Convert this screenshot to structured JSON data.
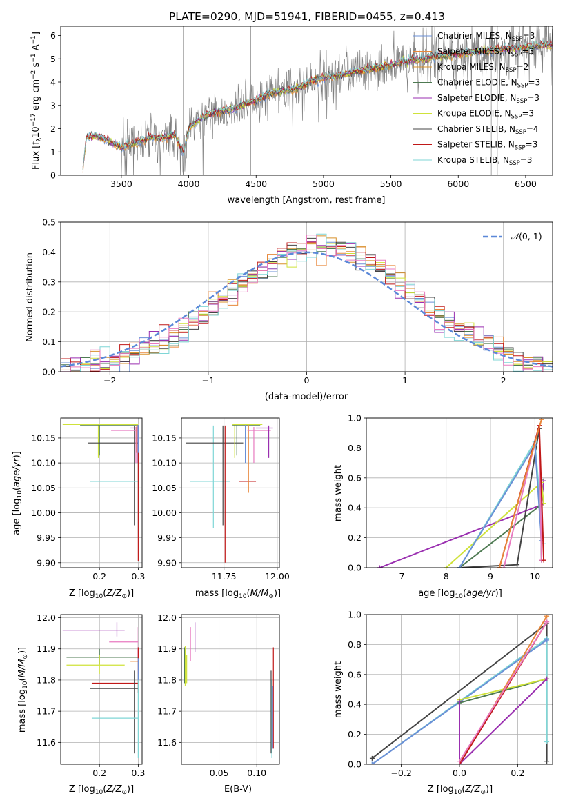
{
  "figure": {
    "title": "PLATE=0290, MJD=51941, FIBERID=0455, z=0.413"
  },
  "colors": {
    "chabrier_miles": "#6a8fd6",
    "salpeter_miles": "#e8873a",
    "kroupa_miles": "#d8902a",
    "chabrier_elodie": "#4e7a52",
    "salpeter_elodie": "#9a2fb0",
    "kroupa_elodie": "#cfe23a",
    "chabrier_stelib": "#444444",
    "salpeter_stelib": "#c01818",
    "kroupa_stelib": "#7fd6d6",
    "normal_curve": "#5b88d8",
    "pink": "#e87ac0",
    "data_gray": "#808080"
  },
  "chart_data": [
    {
      "id": "spectrum",
      "type": "line",
      "title": "",
      "xlabel": "wavelength [Angstrom, rest frame]",
      "ylabel": "Flux [f_λ10^-17 erg cm^-2 s^-1 A^-1]",
      "xlim": [
        3050,
        6700
      ],
      "ylim": [
        0,
        6.4
      ],
      "xticks": [
        3500,
        4000,
        4500,
        5000,
        5500,
        6000,
        6500
      ],
      "yticks": [
        0,
        1,
        2,
        3,
        4,
        5,
        6
      ],
      "grid": false,
      "legend_position": "top-right",
      "legend": [
        "Chabrier MILES, N_SSP=3",
        "Salpeter MILES, N_SSP=3",
        "Kroupa MILES, N_SSP=2",
        "Chabrier ELODIE, N_SSP=3",
        "Salpeter ELODIE, N_SSP=3",
        "Kroupa ELODIE, N_SSP=3",
        "Chabrier STELIB, N_SSP=4",
        "Salpeter STELIB, N_SSP=3",
        "Kroupa STELIB, N_SSP=3"
      ],
      "continuum": {
        "wavelength": [
          3215,
          3240,
          3300,
          3400,
          3500,
          3600,
          3700,
          3800,
          3900,
          3960,
          4000,
          4100,
          4200,
          4300,
          4400,
          4500,
          4600,
          4700,
          4800,
          4900,
          5000,
          5100,
          5200,
          5300,
          5400,
          5500,
          5600,
          5700,
          5800,
          5900,
          6000,
          6100,
          6200,
          6300,
          6400,
          6500,
          6600,
          6700
        ],
        "flux": [
          0.3,
          1.6,
          1.7,
          1.5,
          1.2,
          1.35,
          1.6,
          1.6,
          1.75,
          0.9,
          2.0,
          2.5,
          2.7,
          2.8,
          3.0,
          3.2,
          3.5,
          3.6,
          3.7,
          4.0,
          4.2,
          4.25,
          4.4,
          4.5,
          4.6,
          4.7,
          4.9,
          4.95,
          5.05,
          5.15,
          5.2,
          5.3,
          5.35,
          5.4,
          5.45,
          5.5,
          5.55,
          5.6
        ]
      }
    },
    {
      "id": "residuals",
      "type": "histogram",
      "title": "",
      "xlabel": "(data-model)/error",
      "ylabel": "Normed distribution",
      "xlim": [
        -2.5,
        2.5
      ],
      "ylim": [
        0,
        0.5
      ],
      "xticks": [
        -2,
        -1,
        0,
        1,
        2
      ],
      "yticks": [
        0.0,
        0.1,
        0.2,
        0.3,
        0.4,
        0.5
      ],
      "grid": true,
      "legend_position": "top-right",
      "legend": [
        "N(0,1)"
      ],
      "bin_width": 0.1,
      "base_distribution": "normal(0.1, 0.95)"
    },
    {
      "id": "age_vs_Z",
      "type": "errorbar",
      "title": "",
      "xlabel": "Z [log10(Z/Z⊙)]",
      "ylabel": "age  [log10(age/yr)]",
      "xlim": [
        0.1,
        0.31
      ],
      "ylim": [
        9.89,
        10.19
      ],
      "xticks": [
        0.2,
        0.3
      ],
      "yticks": [
        9.9,
        9.95,
        10.0,
        10.05,
        10.1,
        10.15
      ],
      "grid": true
    },
    {
      "id": "age_vs_mass",
      "type": "errorbar",
      "title": "",
      "xlabel": "mass [log10(M/M⊙)]",
      "ylabel": "",
      "xlim": [
        11.55,
        12.01
      ],
      "ylim": [
        9.89,
        10.19
      ],
      "xticks": [
        11.75,
        12.0
      ],
      "yticks": [
        9.9,
        9.95,
        10.0,
        10.05,
        10.1,
        10.15
      ],
      "grid": true
    },
    {
      "id": "mass_weight_vs_age",
      "type": "line",
      "title": "",
      "xlabel": "age  [log10(age/yr)]",
      "ylabel": "mass weight",
      "xlim": [
        6.2,
        10.4
      ],
      "ylim": [
        0,
        1.0
      ],
      "xticks": [
        7,
        8,
        9,
        10
      ],
      "yticks": [
        0.0,
        0.2,
        0.4,
        0.6,
        0.8,
        1.0
      ],
      "grid": true,
      "series": [
        {
          "color": "salpeter_elodie",
          "x": [
            6.5,
            10.15,
            10.2
          ],
          "y": [
            0.0,
            0.42,
            0.58
          ]
        },
        {
          "color": "kroupa_elodie",
          "x": [
            8.0,
            10.15,
            10.2
          ],
          "y": [
            0.0,
            0.57,
            0.43
          ]
        },
        {
          "color": "chabrier_elodie",
          "x": [
            8.3,
            10.1,
            10.15
          ],
          "y": [
            0.0,
            0.41,
            0.59
          ]
        },
        {
          "color": "chabrier_stelib",
          "x": [
            8.3,
            9.6,
            10.1,
            10.15
          ],
          "y": [
            0.0,
            0.02,
            0.93,
            0.05
          ]
        },
        {
          "color": "kroupa_stelib",
          "x": [
            8.3,
            10.0,
            10.2
          ],
          "y": [
            0.0,
            0.84,
            0.16
          ]
        },
        {
          "color": "chabrier_miles",
          "x": [
            8.3,
            10.0,
            10.15
          ],
          "y": [
            0.0,
            0.82,
            0.18
          ]
        },
        {
          "color": "pink",
          "x": [
            9.3,
            10.1,
            10.15
          ],
          "y": [
            0.0,
            0.95,
            0.05
          ]
        },
        {
          "color": "salpeter_stelib",
          "x": [
            9.2,
            10.1,
            10.2
          ],
          "y": [
            0.0,
            0.95,
            0.05
          ]
        },
        {
          "color": "salpeter_miles",
          "x": [
            9.2,
            10.15
          ],
          "y": [
            0.0,
            0.99
          ]
        }
      ]
    },
    {
      "id": "mass_vs_Z",
      "type": "errorbar",
      "title": "",
      "xlabel": "Z [log10(Z/Z⊙)]",
      "ylabel": "mass [log10(M/M⊙)]",
      "xlim": [
        0.1,
        0.31
      ],
      "ylim": [
        11.53,
        12.01
      ],
      "xticks": [
        0.2,
        0.3
      ],
      "yticks": [
        11.6,
        11.7,
        11.8,
        11.9,
        12.0
      ],
      "grid": true
    },
    {
      "id": "mass_vs_ebv",
      "type": "errorbar",
      "title": "",
      "xlabel": "E(B-V)",
      "ylabel": "",
      "xlim": [
        0.0,
        0.13
      ],
      "ylim": [
        11.53,
        12.01
      ],
      "xticks": [
        0.05,
        0.1
      ],
      "yticks": [
        11.6,
        11.7,
        11.8,
        11.9,
        12.0
      ],
      "grid": true
    },
    {
      "id": "mass_weight_vs_Z",
      "type": "line",
      "title": "",
      "xlabel": "Z [log10(Z/Z⊙)]",
      "ylabel": "mass weight",
      "xlim": [
        -0.32,
        0.32
      ],
      "ylim": [
        0,
        1.0
      ],
      "xticks": [
        -0.2,
        0.0,
        0.2
      ],
      "yticks": [
        0.0,
        0.2,
        0.4,
        0.6,
        0.8,
        1.0
      ],
      "grid": true,
      "series": [
        {
          "color": "chabrier_stelib",
          "x": [
            -0.3,
            0.3,
            0.3
          ],
          "y": [
            0.04,
            0.94,
            0.02
          ]
        },
        {
          "color": "kroupa_stelib",
          "x": [
            -0.3,
            0.3,
            0.3
          ],
          "y": [
            0.0,
            0.84,
            0.15
          ]
        },
        {
          "color": "chabrier_miles",
          "x": [
            -0.3,
            0.3
          ],
          "y": [
            0.0,
            0.83
          ]
        },
        {
          "color": "chabrier_elodie",
          "x": [
            0.0,
            0.3
          ],
          "y": [
            0.41,
            0.57
          ]
        },
        {
          "color": "kroupa_elodie",
          "x": [
            0.0,
            0.3
          ],
          "y": [
            0.43,
            0.57
          ]
        },
        {
          "color": "salpeter_elodie",
          "x": [
            0.0,
            0.0,
            0.3
          ],
          "y": [
            0.42,
            0.0,
            0.57
          ]
        },
        {
          "color": "salpeter_miles",
          "x": [
            0.0,
            0.3
          ],
          "y": [
            0.0,
            0.99
          ]
        },
        {
          "color": "salpeter_stelib",
          "x": [
            0.0,
            0.3
          ],
          "y": [
            0.0,
            0.95
          ]
        },
        {
          "color": "pink",
          "x": [
            0.0,
            0.3
          ],
          "y": [
            0.02,
            0.95
          ]
        }
      ]
    }
  ]
}
